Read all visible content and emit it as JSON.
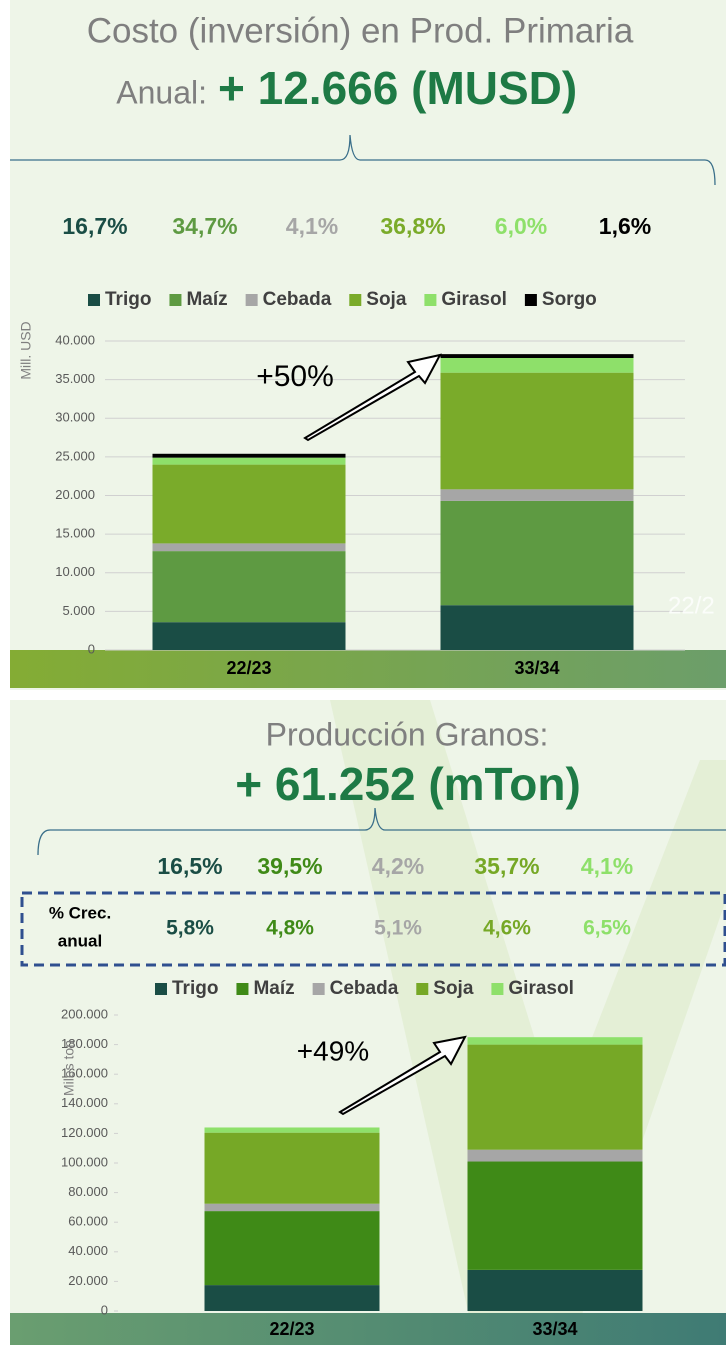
{
  "chart_data": [
    {
      "type": "stacked_bar",
      "title": "Costo (inversión) en Prod. Primaria",
      "headline_prefix": "Anual:",
      "headline": "+ 12.666 (MUSD)",
      "shares": [
        16.7,
        34.7,
        4.1,
        36.8,
        6.0,
        1.6
      ],
      "share_labels": [
        "16,7%",
        "34,7%",
        "4,1%",
        "36,8%",
        "6,0%",
        "1,6%"
      ],
      "y_label": "Mill. USD",
      "annotation": "+50%",
      "faded_text": "22/2",
      "categories": [
        "22/23",
        "33/34"
      ],
      "series": [
        {
          "name": "Trigo",
          "color": "#1a4d45",
          "values": [
            3600,
            5800
          ]
        },
        {
          "name": "Maíz",
          "color": "#5e9a42",
          "values": [
            9200,
            13500
          ]
        },
        {
          "name": "Cebada",
          "color": "#a6a6a6",
          "values": [
            1000,
            1500
          ]
        },
        {
          "name": "Soja",
          "color": "#7aab2a",
          "values": [
            10200,
            15100
          ]
        },
        {
          "name": "Girasol",
          "color": "#8ee06a",
          "values": [
            900,
            1900
          ]
        },
        {
          "name": "Sorgo",
          "color": "#000000",
          "values": [
            500,
            500
          ]
        }
      ],
      "ylim": [
        0,
        40000
      ],
      "yticks": [
        0,
        {
          "value": 5000,
          "label": "5.000"
        },
        {
          "value": 10000,
          "label": "10.000"
        },
        {
          "value": 15000,
          "label": "15.000"
        },
        {
          "value": 20000,
          "label": "20.000"
        },
        {
          "value": 25000,
          "label": "25.000"
        },
        {
          "value": 30000,
          "label": "30.000"
        },
        {
          "value": 35000,
          "label": "35.000"
        },
        {
          "value": 40000,
          "label": "40.000"
        }
      ],
      "grid": true
    },
    {
      "type": "stacked_bar",
      "title": "Producción Granos:",
      "headline": "+ 61.252 (mTon)",
      "shares": [
        16.5,
        39.5,
        4.2,
        35.7,
        4.1
      ],
      "share_labels": [
        "16,5%",
        "39,5%",
        "4,2%",
        "35,7%",
        "4,1%"
      ],
      "growth_title": [
        "% Crec.",
        "anual"
      ],
      "growth": [
        5.8,
        4.8,
        5.1,
        4.6,
        6.5
      ],
      "growth_labels": [
        "5,8%",
        "4,8%",
        "5,1%",
        "4,6%",
        "6,5%"
      ],
      "y_label": "Miles ton",
      "annotation": "+49%",
      "categories": [
        "22/23",
        "33/34"
      ],
      "series": [
        {
          "name": "Trigo",
          "color": "#1a4d45",
          "values": [
            17500,
            27800
          ]
        },
        {
          "name": "Maíz",
          "color": "#3f8a17",
          "values": [
            50000,
            73200
          ]
        },
        {
          "name": "Cebada",
          "color": "#a6a6a6",
          "values": [
            5000,
            8000
          ]
        },
        {
          "name": "Soja",
          "color": "#76a826",
          "values": [
            48000,
            71000
          ]
        },
        {
          "name": "Girasol",
          "color": "#8ee06a",
          "values": [
            3500,
            5000
          ]
        }
      ],
      "ylim": [
        0,
        200000
      ],
      "yticks": [
        0,
        {
          "value": 20000,
          "label": "20.000"
        },
        {
          "value": 40000,
          "label": "40.000"
        },
        {
          "value": 60000,
          "label": "60.000"
        },
        {
          "value": 80000,
          "label": "80.000"
        },
        {
          "value": 100000,
          "label": "100.000"
        },
        {
          "value": 120000,
          "label": "120.000"
        },
        {
          "value": 140000,
          "label": "140.000"
        },
        {
          "value": 160000,
          "label": "160.000"
        },
        {
          "value": 180000,
          "label": "180.000"
        },
        {
          "value": 200000,
          "label": "200.000"
        }
      ],
      "grid": false
    }
  ]
}
